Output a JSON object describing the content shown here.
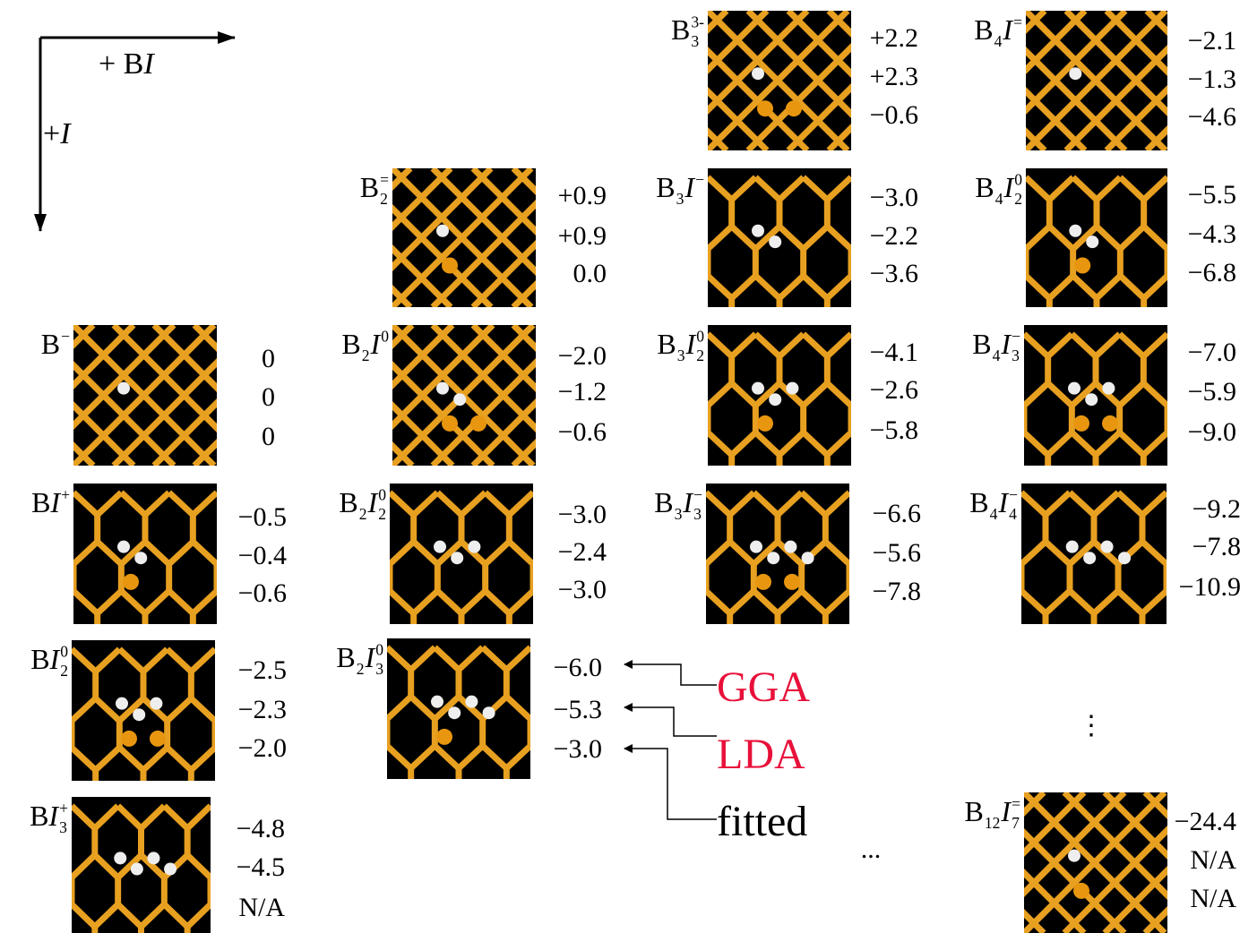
{
  "axes": {
    "right_label": [
      {
        "text": "+ B"
      },
      {
        "text": "I",
        "italic": true
      }
    ],
    "down_label": [
      {
        "text": "+ "
      },
      {
        "text": "I",
        "italic": true
      }
    ]
  },
  "clusters": [
    {
      "label": [
        {
          "text": "B",
          "sup": "−"
        }
      ],
      "values": [
        "0",
        "0",
        "0"
      ]
    },
    {
      "label": [
        {
          "text": "B"
        },
        {
          "text": "I",
          "italic": true,
          "sup": "+"
        }
      ],
      "values": [
        "−0.5",
        "−0.4",
        "−0.6"
      ]
    },
    {
      "label": [
        {
          "text": "B"
        },
        {
          "text": "I",
          "italic": true,
          "sub": "2",
          "sup": "0"
        }
      ],
      "values": [
        "−2.5",
        "−2.3",
        "−2.0"
      ]
    },
    {
      "label": [
        {
          "text": "B"
        },
        {
          "text": "I",
          "italic": true,
          "sub": "3",
          "sup": "+"
        }
      ],
      "values": [
        "−4.8",
        "−4.5",
        "N/A"
      ]
    },
    {
      "label": [
        {
          "text": "B",
          "sub": "2",
          "sup": "="
        }
      ],
      "values": [
        "+0.9",
        "+0.9",
        "0.0"
      ]
    },
    {
      "label": [
        {
          "text": "B",
          "sub": "2"
        },
        {
          "text": "I",
          "italic": true,
          "sup": "0"
        }
      ],
      "values": [
        "−2.0",
        "−1.2",
        "−0.6"
      ]
    },
    {
      "label": [
        {
          "text": "B",
          "sub": "2"
        },
        {
          "text": "I",
          "italic": true,
          "sub": "2",
          "sup": "0"
        }
      ],
      "values": [
        "−3.0",
        "−2.4",
        "−3.0"
      ]
    },
    {
      "label": [
        {
          "text": "B",
          "sub": "2"
        },
        {
          "text": "I",
          "italic": true,
          "sub": "3",
          "sup": "0"
        }
      ],
      "values": [
        "−6.0",
        "−5.3",
        "−3.0"
      ]
    },
    {
      "label": [
        {
          "text": "B",
          "sub": "3",
          "sup": "3-"
        }
      ],
      "values": [
        "+2.2",
        "+2.3",
        "−0.6"
      ]
    },
    {
      "label": [
        {
          "text": "B",
          "sub": "3"
        },
        {
          "text": "I",
          "italic": true,
          "sup": "−"
        }
      ],
      "values": [
        "−3.0",
        "−2.2",
        "−3.6"
      ]
    },
    {
      "label": [
        {
          "text": "B",
          "sub": "3"
        },
        {
          "text": "I",
          "italic": true,
          "sub": "2",
          "sup": "0"
        }
      ],
      "values": [
        "−4.1",
        "−2.6",
        "−5.8"
      ]
    },
    {
      "label": [
        {
          "text": "B",
          "sub": "3"
        },
        {
          "text": "I",
          "italic": true,
          "sub": "3",
          "sup": "−"
        }
      ],
      "values": [
        "−6.6",
        "−5.6",
        "−7.8"
      ]
    },
    {
      "label": [
        {
          "text": "B",
          "sub": "4"
        },
        {
          "text": "I",
          "italic": true,
          "sup": "="
        }
      ],
      "values": [
        "−2.1",
        "−1.3",
        "−4.6"
      ]
    },
    {
      "label": [
        {
          "text": "B",
          "sub": "4"
        },
        {
          "text": "I",
          "italic": true,
          "sub": "2",
          "sup": "0"
        }
      ],
      "values": [
        "−5.5",
        "−4.3",
        "−6.8"
      ]
    },
    {
      "label": [
        {
          "text": "B",
          "sub": "4"
        },
        {
          "text": "I",
          "italic": true,
          "sub": "3",
          "sup": "−"
        }
      ],
      "values": [
        "−7.0",
        "−5.9",
        "−9.0"
      ]
    },
    {
      "label": [
        {
          "text": "B",
          "sub": "4"
        },
        {
          "text": "I",
          "italic": true,
          "sub": "4",
          "sup": "−"
        }
      ],
      "values": [
        "−9.2",
        "−7.8",
        "−10.9"
      ]
    },
    {
      "label": [
        {
          "text": "B",
          "sub": "12"
        },
        {
          "text": "I",
          "italic": true,
          "sub": "7",
          "sup": "="
        }
      ],
      "values": [
        "−24.4",
        "N/A",
        "N/A"
      ]
    }
  ],
  "legend": [
    "GGA",
    "LDA",
    "fitted"
  ],
  "ellipses": [
    "⋮",
    "..."
  ]
}
